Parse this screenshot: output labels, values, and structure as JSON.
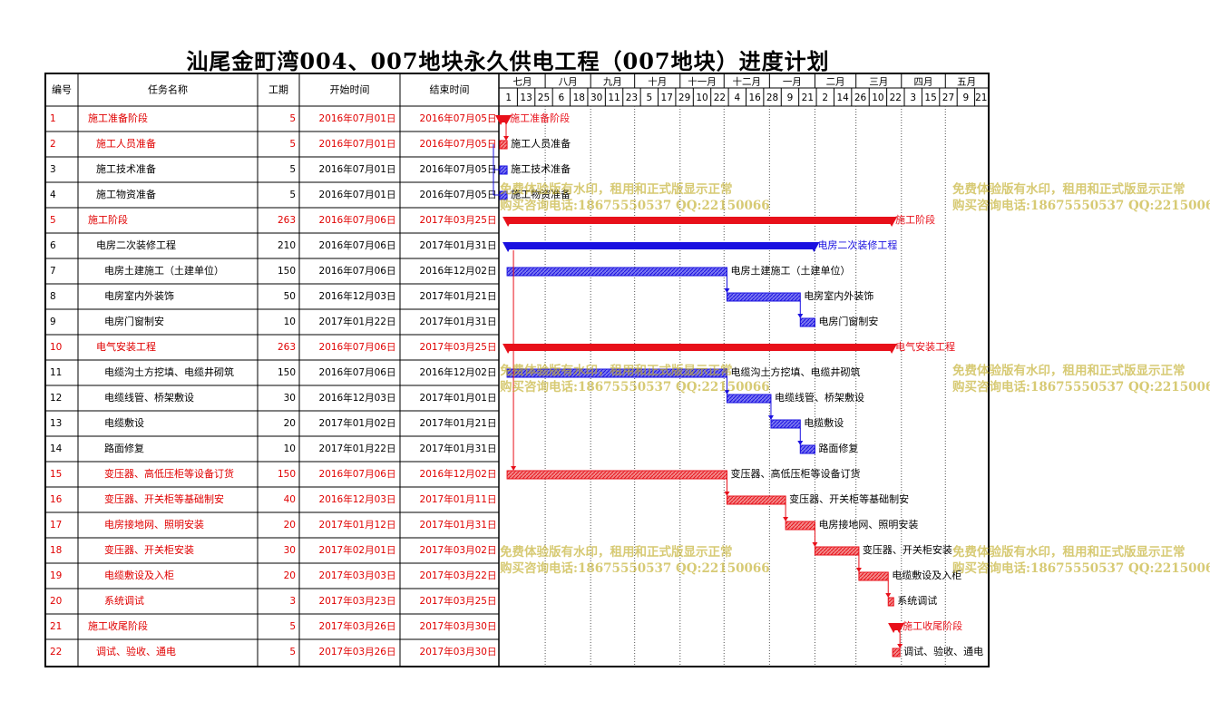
{
  "title": "汕尾金町湾004、007地块永久供电工程（007地块）进度计划",
  "columns": [
    "编号",
    "任务名称",
    "工期",
    "开始时间",
    "结束时间"
  ],
  "month_labels": [
    "七月",
    "八月",
    "九月",
    "十月",
    "十一月",
    "十二月",
    "一月",
    "二月",
    "三月",
    "四月",
    "五月"
  ],
  "week_labels": [
    "1",
    "13",
    "25",
    "6",
    "18",
    "30",
    "11",
    "23",
    "5",
    "17",
    "29",
    "10",
    "22",
    "4",
    "16",
    "28",
    "9",
    "21",
    "2",
    "14",
    "26",
    "10",
    "22",
    "3",
    "15",
    "27",
    "9",
    "21"
  ],
  "watermark": {
    "line1": "免费体验版有水印，租用和正式版显示正常",
    "line2": "购买咨询电话:18675550537 QQ:22150066"
  },
  "colors": {
    "summary_red": "#e8101a",
    "summary_blue": "#1a10e0",
    "task_red": "#e8101a",
    "task_blue": "#1a10e0",
    "red_text": "#e00000",
    "black_text": "#000000",
    "grid": "#555555"
  },
  "tasks": [
    {
      "id": "1",
      "name": "施工准备阶段",
      "indent": 0,
      "duration": "5",
      "start": "2016年07月01日",
      "end": "2016年07月05日",
      "color": "red",
      "kind": "summary",
      "label": "施工准备阶段"
    },
    {
      "id": "2",
      "name": "施工人员准备",
      "indent": 1,
      "duration": "5",
      "start": "2016年07月01日",
      "end": "2016年07月05日",
      "color": "red",
      "kind": "task",
      "label": "施工人员准备"
    },
    {
      "id": "3",
      "name": "施工技术准备",
      "indent": 1,
      "duration": "5",
      "start": "2016年07月01日",
      "end": "2016年07月05日",
      "color": "black",
      "kind": "task",
      "label": "施工技术准备"
    },
    {
      "id": "4",
      "name": "施工物资准备",
      "indent": 1,
      "duration": "5",
      "start": "2016年07月01日",
      "end": "2016年07月05日",
      "color": "black",
      "kind": "task",
      "label": "施工物资准备"
    },
    {
      "id": "5",
      "name": "施工阶段",
      "indent": 0,
      "duration": "263",
      "start": "2016年07月06日",
      "end": "2017年03月25日",
      "color": "red",
      "kind": "summary",
      "label": "施工阶段"
    },
    {
      "id": "6",
      "name": "电房二次装修工程",
      "indent": 1,
      "duration": "210",
      "start": "2016年07月06日",
      "end": "2017年01月31日",
      "color": "black",
      "kind": "summary",
      "label": "电房二次装修工程"
    },
    {
      "id": "7",
      "name": "电房土建施工（土建单位）",
      "indent": 2,
      "duration": "150",
      "start": "2016年07月06日",
      "end": "2016年12月02日",
      "color": "black",
      "kind": "task",
      "label": "电房土建施工（土建单位）"
    },
    {
      "id": "8",
      "name": "电房室内外装饰",
      "indent": 2,
      "duration": "50",
      "start": "2016年12月03日",
      "end": "2017年01月21日",
      "color": "black",
      "kind": "task",
      "label": "电房室内外装饰"
    },
    {
      "id": "9",
      "name": "电房门窗制安",
      "indent": 2,
      "duration": "10",
      "start": "2017年01月22日",
      "end": "2017年01月31日",
      "color": "black",
      "kind": "task",
      "label": "电房门窗制安"
    },
    {
      "id": "10",
      "name": "电气安装工程",
      "indent": 1,
      "duration": "263",
      "start": "2016年07月06日",
      "end": "2017年03月25日",
      "color": "red",
      "kind": "summary",
      "label": "电气安装工程"
    },
    {
      "id": "11",
      "name": "电缆沟土方挖填、电缆井砌筑",
      "indent": 2,
      "duration": "150",
      "start": "2016年07月06日",
      "end": "2016年12月02日",
      "color": "black",
      "kind": "task",
      "label": "电缆沟土方挖填、电缆井砌筑"
    },
    {
      "id": "12",
      "name": "电缆线管、桥架敷设",
      "indent": 2,
      "duration": "30",
      "start": "2016年12月03日",
      "end": "2017年01月01日",
      "color": "black",
      "kind": "task",
      "label": "电缆线管、桥架敷设"
    },
    {
      "id": "13",
      "name": "电缆敷设",
      "indent": 2,
      "duration": "20",
      "start": "2017年01月02日",
      "end": "2017年01月21日",
      "color": "black",
      "kind": "task",
      "label": "电缆敷设"
    },
    {
      "id": "14",
      "name": "路面修复",
      "indent": 2,
      "duration": "10",
      "start": "2017年01月22日",
      "end": "2017年01月31日",
      "color": "black",
      "kind": "task",
      "label": "路面修复"
    },
    {
      "id": "15",
      "name": "变压器、高低压柜等设备订货",
      "indent": 2,
      "duration": "150",
      "start": "2016年07月06日",
      "end": "2016年12月02日",
      "color": "red",
      "kind": "task",
      "label": "变压器、高低压柜等设备订货"
    },
    {
      "id": "16",
      "name": "变压器、开关柜等基础制安",
      "indent": 2,
      "duration": "40",
      "start": "2016年12月03日",
      "end": "2017年01月11日",
      "color": "red",
      "kind": "task",
      "label": "变压器、开关柜等基础制安"
    },
    {
      "id": "17",
      "name": "电房接地网、照明安装",
      "indent": 2,
      "duration": "20",
      "start": "2017年01月12日",
      "end": "2017年01月31日",
      "color": "red",
      "kind": "task",
      "label": "电房接地网、照明安装"
    },
    {
      "id": "18",
      "name": "变压器、开关柜安装",
      "indent": 2,
      "duration": "30",
      "start": "2017年02月01日",
      "end": "2017年03月02日",
      "color": "red",
      "kind": "task",
      "label": "变压器、开关柜安装"
    },
    {
      "id": "19",
      "name": "电缆敷设及入柜",
      "indent": 2,
      "duration": "20",
      "start": "2017年03月03日",
      "end": "2017年03月22日",
      "color": "red",
      "kind": "task",
      "label": "电缆敷设及入柜"
    },
    {
      "id": "20",
      "name": "系统调试",
      "indent": 2,
      "duration": "3",
      "start": "2017年03月23日",
      "end": "2017年03月25日",
      "color": "red",
      "kind": "task",
      "label": "系统调试"
    },
    {
      "id": "21",
      "name": "施工收尾阶段",
      "indent": 0,
      "duration": "5",
      "start": "2017年03月26日",
      "end": "2017年03月30日",
      "color": "red",
      "kind": "summary",
      "label": "施工收尾阶段"
    },
    {
      "id": "22",
      "name": "调试、验收、通电",
      "indent": 1,
      "duration": "5",
      "start": "2017年03月26日",
      "end": "2017年03月30日",
      "color": "red",
      "kind": "task",
      "label": "调试、验收、通电"
    }
  ]
}
